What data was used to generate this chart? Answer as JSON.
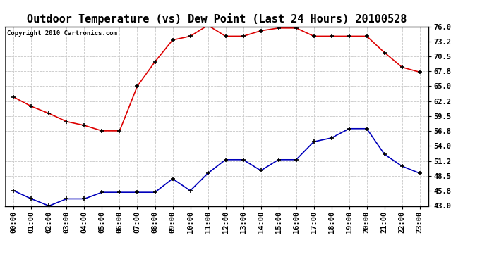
{
  "title": "Outdoor Temperature (vs) Dew Point (Last 24 Hours) 20100528",
  "copyright": "Copyright 2010 Cartronics.com",
  "x_labels": [
    "00:00",
    "01:00",
    "02:00",
    "03:00",
    "04:00",
    "05:00",
    "06:00",
    "07:00",
    "08:00",
    "09:00",
    "10:00",
    "11:00",
    "12:00",
    "13:00",
    "14:00",
    "15:00",
    "16:00",
    "17:00",
    "18:00",
    "19:00",
    "20:00",
    "21:00",
    "22:00",
    "23:00"
  ],
  "temp_red": [
    63.0,
    61.3,
    60.0,
    58.5,
    57.8,
    56.8,
    56.8,
    65.0,
    69.5,
    73.5,
    74.2,
    76.2,
    74.2,
    74.2,
    75.2,
    75.7,
    75.7,
    74.2,
    74.2,
    74.2,
    74.2,
    71.2,
    68.5,
    67.6
  ],
  "dew_blue": [
    45.8,
    44.3,
    43.0,
    44.3,
    44.3,
    45.5,
    45.5,
    45.5,
    45.5,
    48.0,
    45.8,
    49.0,
    51.5,
    51.5,
    49.5,
    51.5,
    51.5,
    54.8,
    55.5,
    57.2,
    57.2,
    52.5,
    50.3,
    49.0
  ],
  "ylim": [
    43.0,
    76.0
  ],
  "yticks": [
    43.0,
    45.8,
    48.5,
    51.2,
    54.0,
    56.8,
    59.5,
    62.2,
    65.0,
    67.8,
    70.5,
    73.2,
    76.0
  ],
  "background_color": "#ffffff",
  "plot_bg_color": "#ffffff",
  "grid_color": "#c8c8c8",
  "red_color": "#dd0000",
  "blue_color": "#0000bb",
  "title_fontsize": 11,
  "tick_fontsize": 7.5,
  "copyright_fontsize": 6.5
}
